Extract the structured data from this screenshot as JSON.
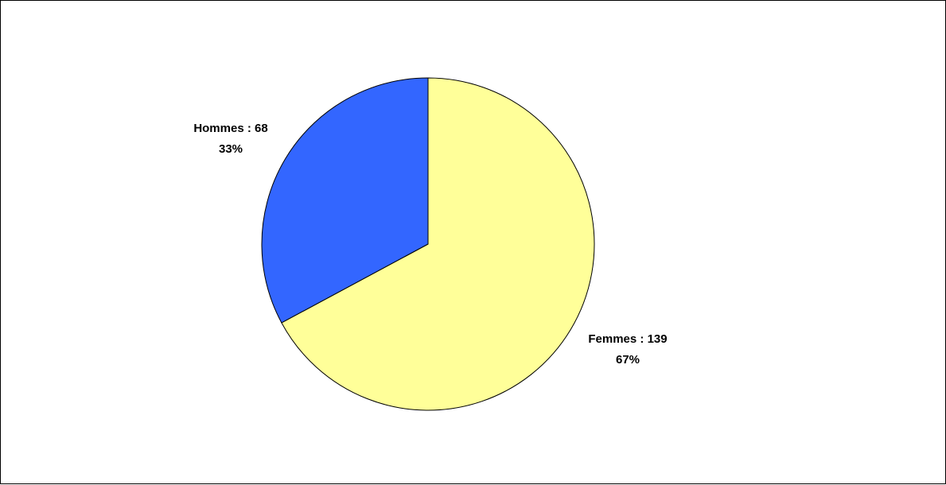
{
  "chart_data": {
    "type": "pie",
    "title": "",
    "slices": [
      {
        "category": "Femmes",
        "value": 139,
        "percent": "67%",
        "label": "Femmes : 139",
        "color": "#FFFF99"
      },
      {
        "category": "Hommes",
        "value": 68,
        "percent": "33%",
        "label": "Hommes : 68",
        "color": "#3366FF"
      }
    ],
    "start_angle_deg": 0,
    "direction": "clockwise",
    "legend": "none"
  }
}
